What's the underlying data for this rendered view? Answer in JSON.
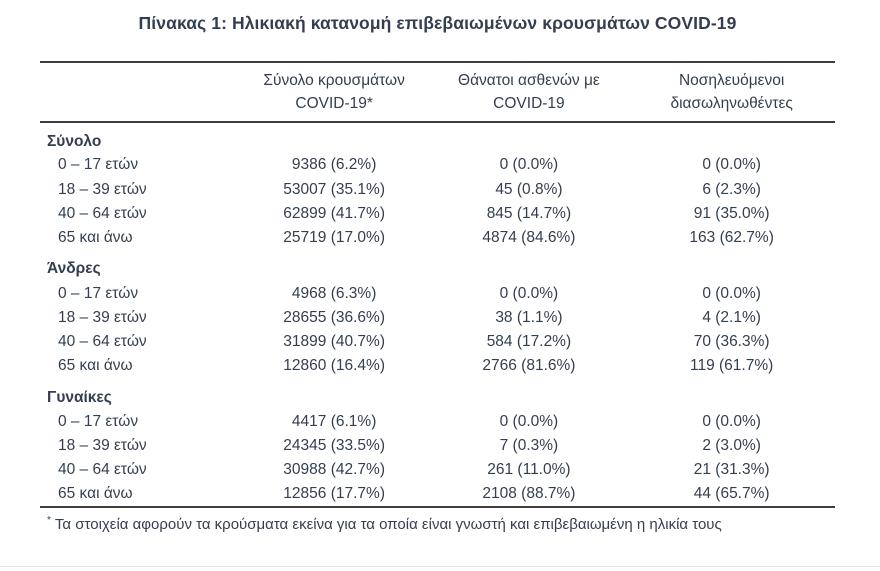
{
  "page": {
    "background": "#ffffff",
    "text_color": "#333f50",
    "border_color": "#3d3d3d"
  },
  "table": {
    "title": "Πίνακας 1: Ηλικιακή κατανομή επιβεβαιωμένων κρουσμάτων COVID-19",
    "columns": [
      {
        "line1": "",
        "line2": ""
      },
      {
        "line1": "Σύνολο κρουσμάτων",
        "line2": "COVID-19*"
      },
      {
        "line1": "Θάνατοι ασθενών με",
        "line2": "COVID-19"
      },
      {
        "line1": "Νοσηλευόμενοι",
        "line2": "διασωληνωθέντες"
      }
    ],
    "sections": [
      {
        "label": "Σύνολο",
        "rows": [
          {
            "age": "0 – 17 ετών",
            "cases": "9386 (6.2%)",
            "deaths": "0 (0.0%)",
            "intubated": "0 (0.0%)"
          },
          {
            "age": "18 – 39 ετών",
            "cases": "53007 (35.1%)",
            "deaths": "45 (0.8%)",
            "intubated": "6 (2.3%)"
          },
          {
            "age": "40 – 64 ετών",
            "cases": "62899 (41.7%)",
            "deaths": "845 (14.7%)",
            "intubated": "91 (35.0%)"
          },
          {
            "age": "65 και άνω",
            "cases": "25719 (17.0%)",
            "deaths": "4874 (84.6%)",
            "intubated": "163 (62.7%)"
          }
        ]
      },
      {
        "label": "Άνδρες",
        "rows": [
          {
            "age": "0 – 17 ετών",
            "cases": "4968 (6.3%)",
            "deaths": "0 (0.0%)",
            "intubated": "0 (0.0%)"
          },
          {
            "age": "18 – 39 ετών",
            "cases": "28655 (36.6%)",
            "deaths": "38 (1.1%)",
            "intubated": "4 (2.1%)"
          },
          {
            "age": "40 – 64 ετών",
            "cases": "31899 (40.7%)",
            "deaths": "584 (17.2%)",
            "intubated": "70 (36.3%)"
          },
          {
            "age": "65 και άνω",
            "cases": "12860 (16.4%)",
            "deaths": "2766 (81.6%)",
            "intubated": "119 (61.7%)"
          }
        ]
      },
      {
        "label": "Γυναίκες",
        "rows": [
          {
            "age": "0 – 17 ετών",
            "cases": "4417 (6.1%)",
            "deaths": "0 (0.0%)",
            "intubated": "0 (0.0%)"
          },
          {
            "age": "18 – 39 ετών",
            "cases": "24345 (33.5%)",
            "deaths": "7 (0.3%)",
            "intubated": "2 (3.0%)"
          },
          {
            "age": "40 – 64 ετών",
            "cases": "30988 (42.7%)",
            "deaths": "261 (11.0%)",
            "intubated": "21 (31.3%)"
          },
          {
            "age": "65 και άνω",
            "cases": "12856 (17.7%)",
            "deaths": "2108 (88.7%)",
            "intubated": "44 (65.7%)"
          }
        ]
      }
    ],
    "footnote": {
      "marker": "*",
      "text": "Τα στοιχεία αφορούν τα κρούσματα εκείνα για τα οποία είναι γνωστή και επιβεβαιωμένη η ηλικία τους"
    }
  }
}
